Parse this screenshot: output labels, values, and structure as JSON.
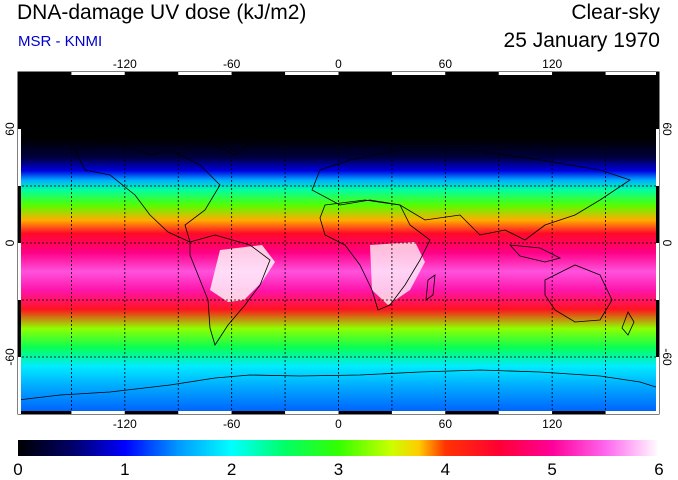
{
  "header": {
    "title": "DNA-damage UV dose (kJ/m2)",
    "subtitle": "MSR - KNMI",
    "condition": "Clear-sky",
    "date": "25 January 1970"
  },
  "colors": {
    "subtitle": "#0000cc"
  },
  "map": {
    "projection": "equirectangular",
    "lon_range": [
      -180,
      180
    ],
    "lat_range": [
      -90,
      90
    ],
    "lon_ticks": [
      -120,
      -60,
      0,
      60,
      120
    ],
    "lat_ticks": [
      60,
      0,
      -60
    ],
    "lon_tick_labels": [
      "-120",
      "-60",
      "0",
      "60",
      "120"
    ],
    "lat_tick_labels": [
      "60",
      "0",
      "-60"
    ],
    "grid": "dashed, every 30 degrees"
  },
  "colorbar": {
    "min": 0,
    "max": 6,
    "tick_labels": [
      "0",
      "1",
      "2",
      "3",
      "4",
      "5",
      "6"
    ],
    "stops": [
      {
        "value": 0.0,
        "color": "#000000"
      },
      {
        "value": 0.5,
        "color": "#000066"
      },
      {
        "value": 1.0,
        "color": "#0000ff"
      },
      {
        "value": 1.5,
        "color": "#0099ff"
      },
      {
        "value": 2.0,
        "color": "#00ffff"
      },
      {
        "value": 2.5,
        "color": "#00ff66"
      },
      {
        "value": 3.0,
        "color": "#33ff00"
      },
      {
        "value": 3.5,
        "color": "#ccff00"
      },
      {
        "value": 3.75,
        "color": "#ffcc00"
      },
      {
        "value": 4.0,
        "color": "#ff3300"
      },
      {
        "value": 4.5,
        "color": "#ff0033"
      },
      {
        "value": 5.0,
        "color": "#ff0099"
      },
      {
        "value": 5.5,
        "color": "#ff66ee"
      },
      {
        "value": 6.0,
        "color": "#ffffff"
      }
    ]
  },
  "dose_profile": [
    {
      "lat": 90,
      "value": 0.0
    },
    {
      "lat": 55,
      "value": 0.0
    },
    {
      "lat": 45,
      "value": 0.3
    },
    {
      "lat": 38,
      "value": 0.9
    },
    {
      "lat": 33,
      "value": 1.6
    },
    {
      "lat": 28,
      "value": 2.3
    },
    {
      "lat": 20,
      "value": 3.1
    },
    {
      "lat": 12,
      "value": 3.8
    },
    {
      "lat": 5,
      "value": 4.4
    },
    {
      "lat": -5,
      "value": 4.9
    },
    {
      "lat": -15,
      "value": 5.4
    },
    {
      "lat": -25,
      "value": 5.1
    },
    {
      "lat": -35,
      "value": 4.3
    },
    {
      "lat": -45,
      "value": 3.3
    },
    {
      "lat": -55,
      "value": 2.6
    },
    {
      "lat": -65,
      "value": 1.9
    },
    {
      "lat": -75,
      "value": 1.6
    },
    {
      "lat": -90,
      "value": 1.3
    }
  ]
}
